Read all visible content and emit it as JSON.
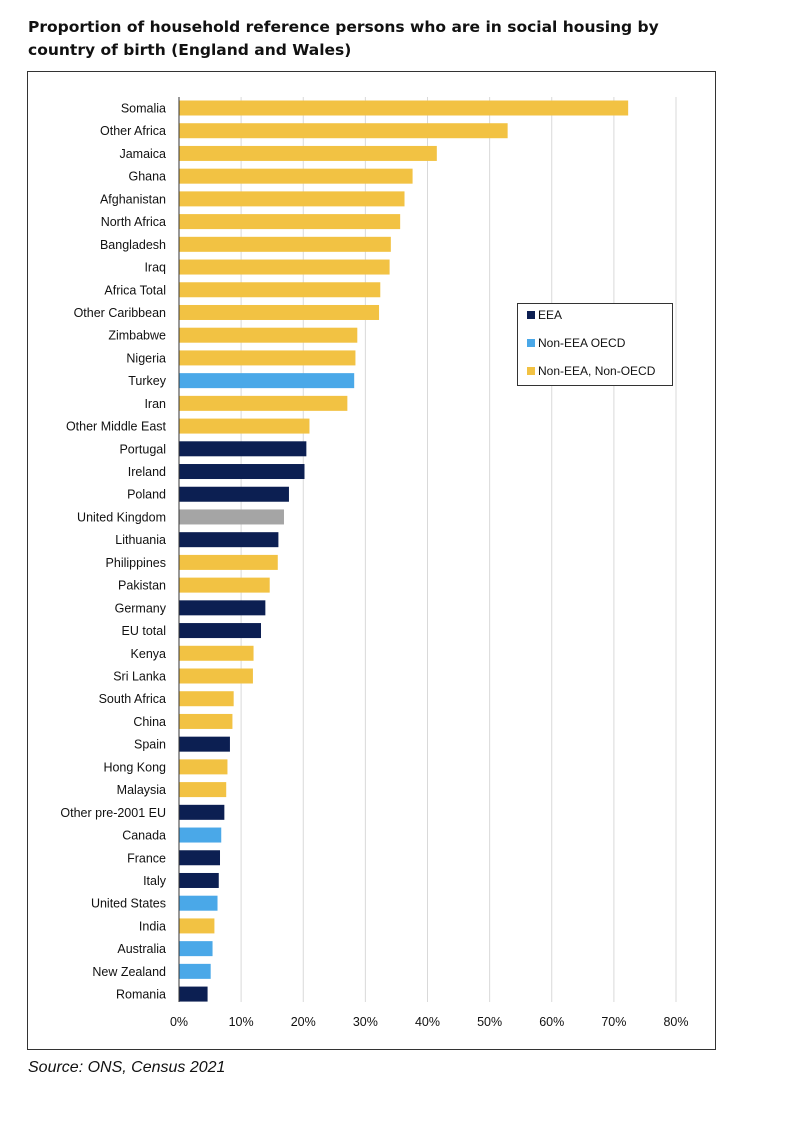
{
  "title": "Proportion of household reference persons who are in social housing by country of birth (England and Wales)",
  "source": "Source: ONS, Census 2021",
  "colors": {
    "EEA": "#0c1f52",
    "Non-EEA OECD": "#4aa8e8",
    "Non-EEA, Non-OECD": "#f2c243",
    "Reference": "#a5a5a5",
    "grid": "#d9d9d9"
  },
  "legend": [
    {
      "label": "EEA",
      "group": "EEA"
    },
    {
      "label": "Non-EEA OECD",
      "group": "Non-EEA OECD"
    },
    {
      "label": "Non-EEA, Non-OECD",
      "group": "Non-EEA, Non-OECD"
    }
  ],
  "chart_data": {
    "type": "bar",
    "orientation": "horizontal",
    "title": "Proportion of household reference persons who are in social housing by country of birth (England and Wales)",
    "xlim": [
      0,
      80
    ],
    "xticks": [
      0,
      10,
      20,
      30,
      40,
      50,
      60,
      70,
      80
    ],
    "xtick_labels": [
      "0%",
      "10%",
      "20%",
      "30%",
      "40%",
      "50%",
      "60%",
      "70%",
      "80%"
    ],
    "grid": "vertical",
    "legend_position": "right",
    "categories": [
      "Somalia",
      "Other Africa",
      "Jamaica",
      "Ghana",
      "Afghanistan",
      "North Africa",
      "Bangladesh",
      "Iraq",
      "Africa Total",
      "Other Caribbean",
      "Zimbabwe",
      "Nigeria",
      "Turkey",
      "Iran",
      "Other Middle East",
      "Portugal",
      "Ireland",
      "Poland",
      "United Kingdom",
      "Lithuania",
      "Philippines",
      "Pakistan",
      "Germany",
      "EU total",
      "Kenya",
      "Sri Lanka",
      "South Africa",
      "China",
      "Spain",
      "Hong Kong",
      "Malaysia",
      "Other pre-2001 EU",
      "Canada",
      "France",
      "Italy",
      "United States",
      "India",
      "Australia",
      "New Zealand",
      "Romania"
    ],
    "values": [
      72.3,
      52.9,
      41.5,
      37.6,
      36.3,
      35.6,
      34.1,
      33.9,
      32.4,
      32.2,
      28.7,
      28.4,
      28.2,
      27.1,
      21.0,
      20.5,
      20.2,
      17.7,
      16.9,
      16.0,
      15.9,
      14.6,
      13.9,
      13.2,
      12.0,
      11.9,
      8.8,
      8.6,
      8.2,
      7.8,
      7.6,
      7.3,
      6.8,
      6.6,
      6.4,
      6.2,
      5.7,
      5.4,
      5.1,
      4.6
    ],
    "groups": [
      "Non-EEA, Non-OECD",
      "Non-EEA, Non-OECD",
      "Non-EEA, Non-OECD",
      "Non-EEA, Non-OECD",
      "Non-EEA, Non-OECD",
      "Non-EEA, Non-OECD",
      "Non-EEA, Non-OECD",
      "Non-EEA, Non-OECD",
      "Non-EEA, Non-OECD",
      "Non-EEA, Non-OECD",
      "Non-EEA, Non-OECD",
      "Non-EEA, Non-OECD",
      "Non-EEA OECD",
      "Non-EEA, Non-OECD",
      "Non-EEA, Non-OECD",
      "EEA",
      "EEA",
      "EEA",
      "Reference",
      "EEA",
      "Non-EEA, Non-OECD",
      "Non-EEA, Non-OECD",
      "EEA",
      "EEA",
      "Non-EEA, Non-OECD",
      "Non-EEA, Non-OECD",
      "Non-EEA, Non-OECD",
      "Non-EEA, Non-OECD",
      "EEA",
      "Non-EEA, Non-OECD",
      "Non-EEA, Non-OECD",
      "EEA",
      "Non-EEA OECD",
      "EEA",
      "EEA",
      "Non-EEA OECD",
      "Non-EEA, Non-OECD",
      "Non-EEA OECD",
      "Non-EEA OECD",
      "EEA"
    ]
  }
}
